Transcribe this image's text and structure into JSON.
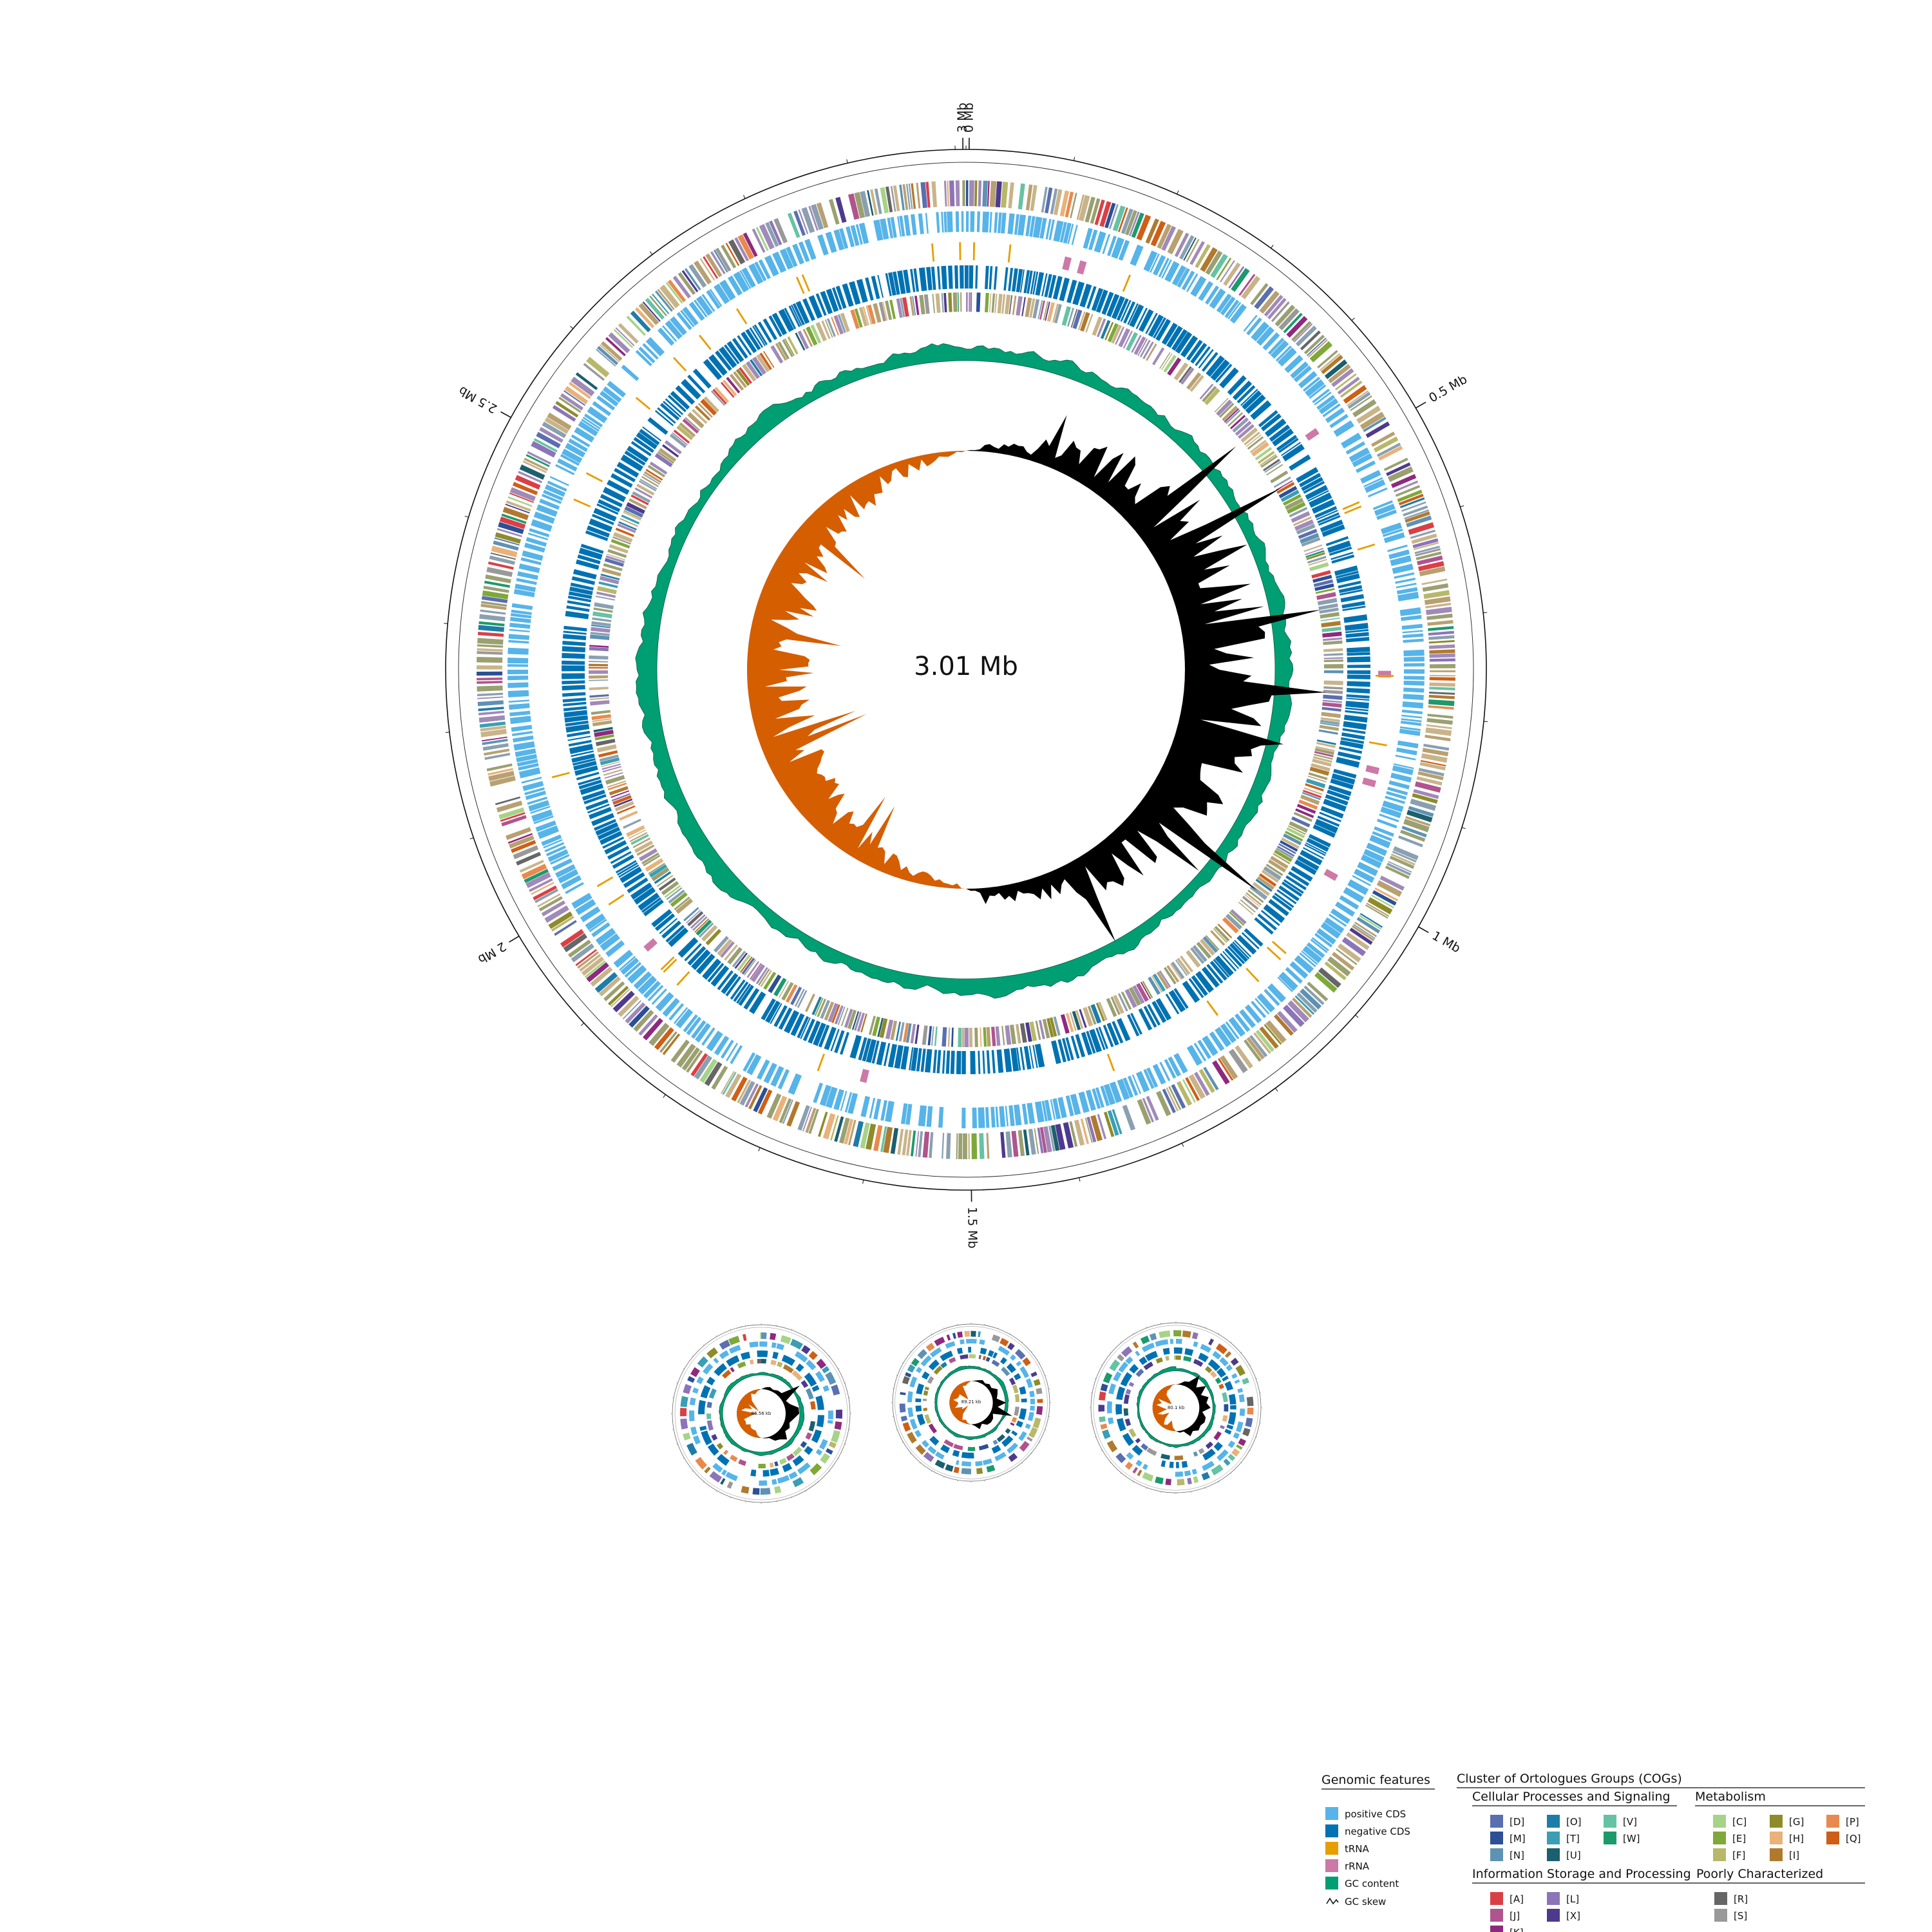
{
  "main_map": {
    "total_label": "3.01 Mb",
    "genome_length_mb": 3.01,
    "tick_labels": [
      {
        "label": "0 Mb",
        "mb": 0
      },
      {
        "label": "3 Mb",
        "mb": 3.0
      },
      {
        "label": "0.5 Mb",
        "mb": 0.5
      },
      {
        "label": "1 Mb",
        "mb": 1.0
      },
      {
        "label": "1.5 Mb",
        "mb": 1.5
      },
      {
        "label": "2 Mb",
        "mb": 2.0
      },
      {
        "label": "2.5 Mb",
        "mb": 2.5
      }
    ]
  },
  "plasmids": [
    {
      "label": "86.56 kb",
      "length_kb": 86.56
    },
    {
      "label": "89.21 kb",
      "length_kb": 89.21
    },
    {
      "label": "80.1 kb",
      "length_kb": 80.1
    }
  ],
  "colors": {
    "positive_cds": "#56B4E9",
    "negative_cds": "#0072B2",
    "trna": "#E69F00",
    "rrna": "#CC79A7",
    "gc_content": "#009E73",
    "gc_skew_pos": "#000000",
    "gc_skew_neg": "#D55E00"
  },
  "legend": {
    "genomic_title": "Genomic features",
    "genomic_items": [
      {
        "key": "positive_cds",
        "label": "positive CDS",
        "color": "#56B4E9"
      },
      {
        "key": "negative_cds",
        "label": "negative CDS",
        "color": "#0072B2"
      },
      {
        "key": "trna",
        "label": "tRNA",
        "color": "#E69F00"
      },
      {
        "key": "rrna",
        "label": "rRNA",
        "color": "#CC79A7"
      },
      {
        "key": "gc_content",
        "label": "GC content",
        "color": "#009E73"
      },
      {
        "key": "gc_skew",
        "label": "GC skew",
        "icon": "gc-skew-line"
      }
    ],
    "cog_title": "Cluster of Ortologues Groups (COGs)",
    "groups": [
      {
        "title": "Cellular Processes and Signaling",
        "items": [
          {
            "code": "[D]",
            "color": "#5A6FB0"
          },
          {
            "code": "[M]",
            "color": "#2C4F96"
          },
          {
            "code": "[N]",
            "color": "#5E92B4"
          },
          {
            "code": "[O]",
            "color": "#1E7CA8"
          },
          {
            "code": "[T]",
            "color": "#3A9EB5"
          },
          {
            "code": "[U]",
            "color": "#1C5F6E"
          },
          {
            "code": "[V]",
            "color": "#66C2A4"
          },
          {
            "code": "[W]",
            "color": "#1C9A6C"
          }
        ]
      },
      {
        "title": "Metabolism",
        "items": [
          {
            "code": "[C]",
            "color": "#A6D388"
          },
          {
            "code": "[E]",
            "color": "#7FA83A"
          },
          {
            "code": "[F]",
            "color": "#B8B86A"
          },
          {
            "code": "[G]",
            "color": "#8E8C2A"
          },
          {
            "code": "[H]",
            "color": "#E8B27A"
          },
          {
            "code": "[I]",
            "color": "#B07A2E"
          },
          {
            "code": "[P]",
            "color": "#E88A4E"
          },
          {
            "code": "[Q]",
            "color": "#CE5F17"
          }
        ]
      },
      {
        "title": "Information Storage and Processing",
        "items": [
          {
            "code": "[A]",
            "color": "#D94046"
          },
          {
            "code": "[J]",
            "color": "#B0548E"
          },
          {
            "code": "[K]",
            "color": "#8E2A7E"
          },
          {
            "code": "[L]",
            "color": "#8C74B8"
          },
          {
            "code": "[X]",
            "color": "#4E3A8C"
          }
        ]
      },
      {
        "title": "Poorly Characterized",
        "items": [
          {
            "code": "[R]",
            "color": "#666666"
          },
          {
            "code": "[S]",
            "color": "#999999"
          }
        ]
      }
    ]
  }
}
